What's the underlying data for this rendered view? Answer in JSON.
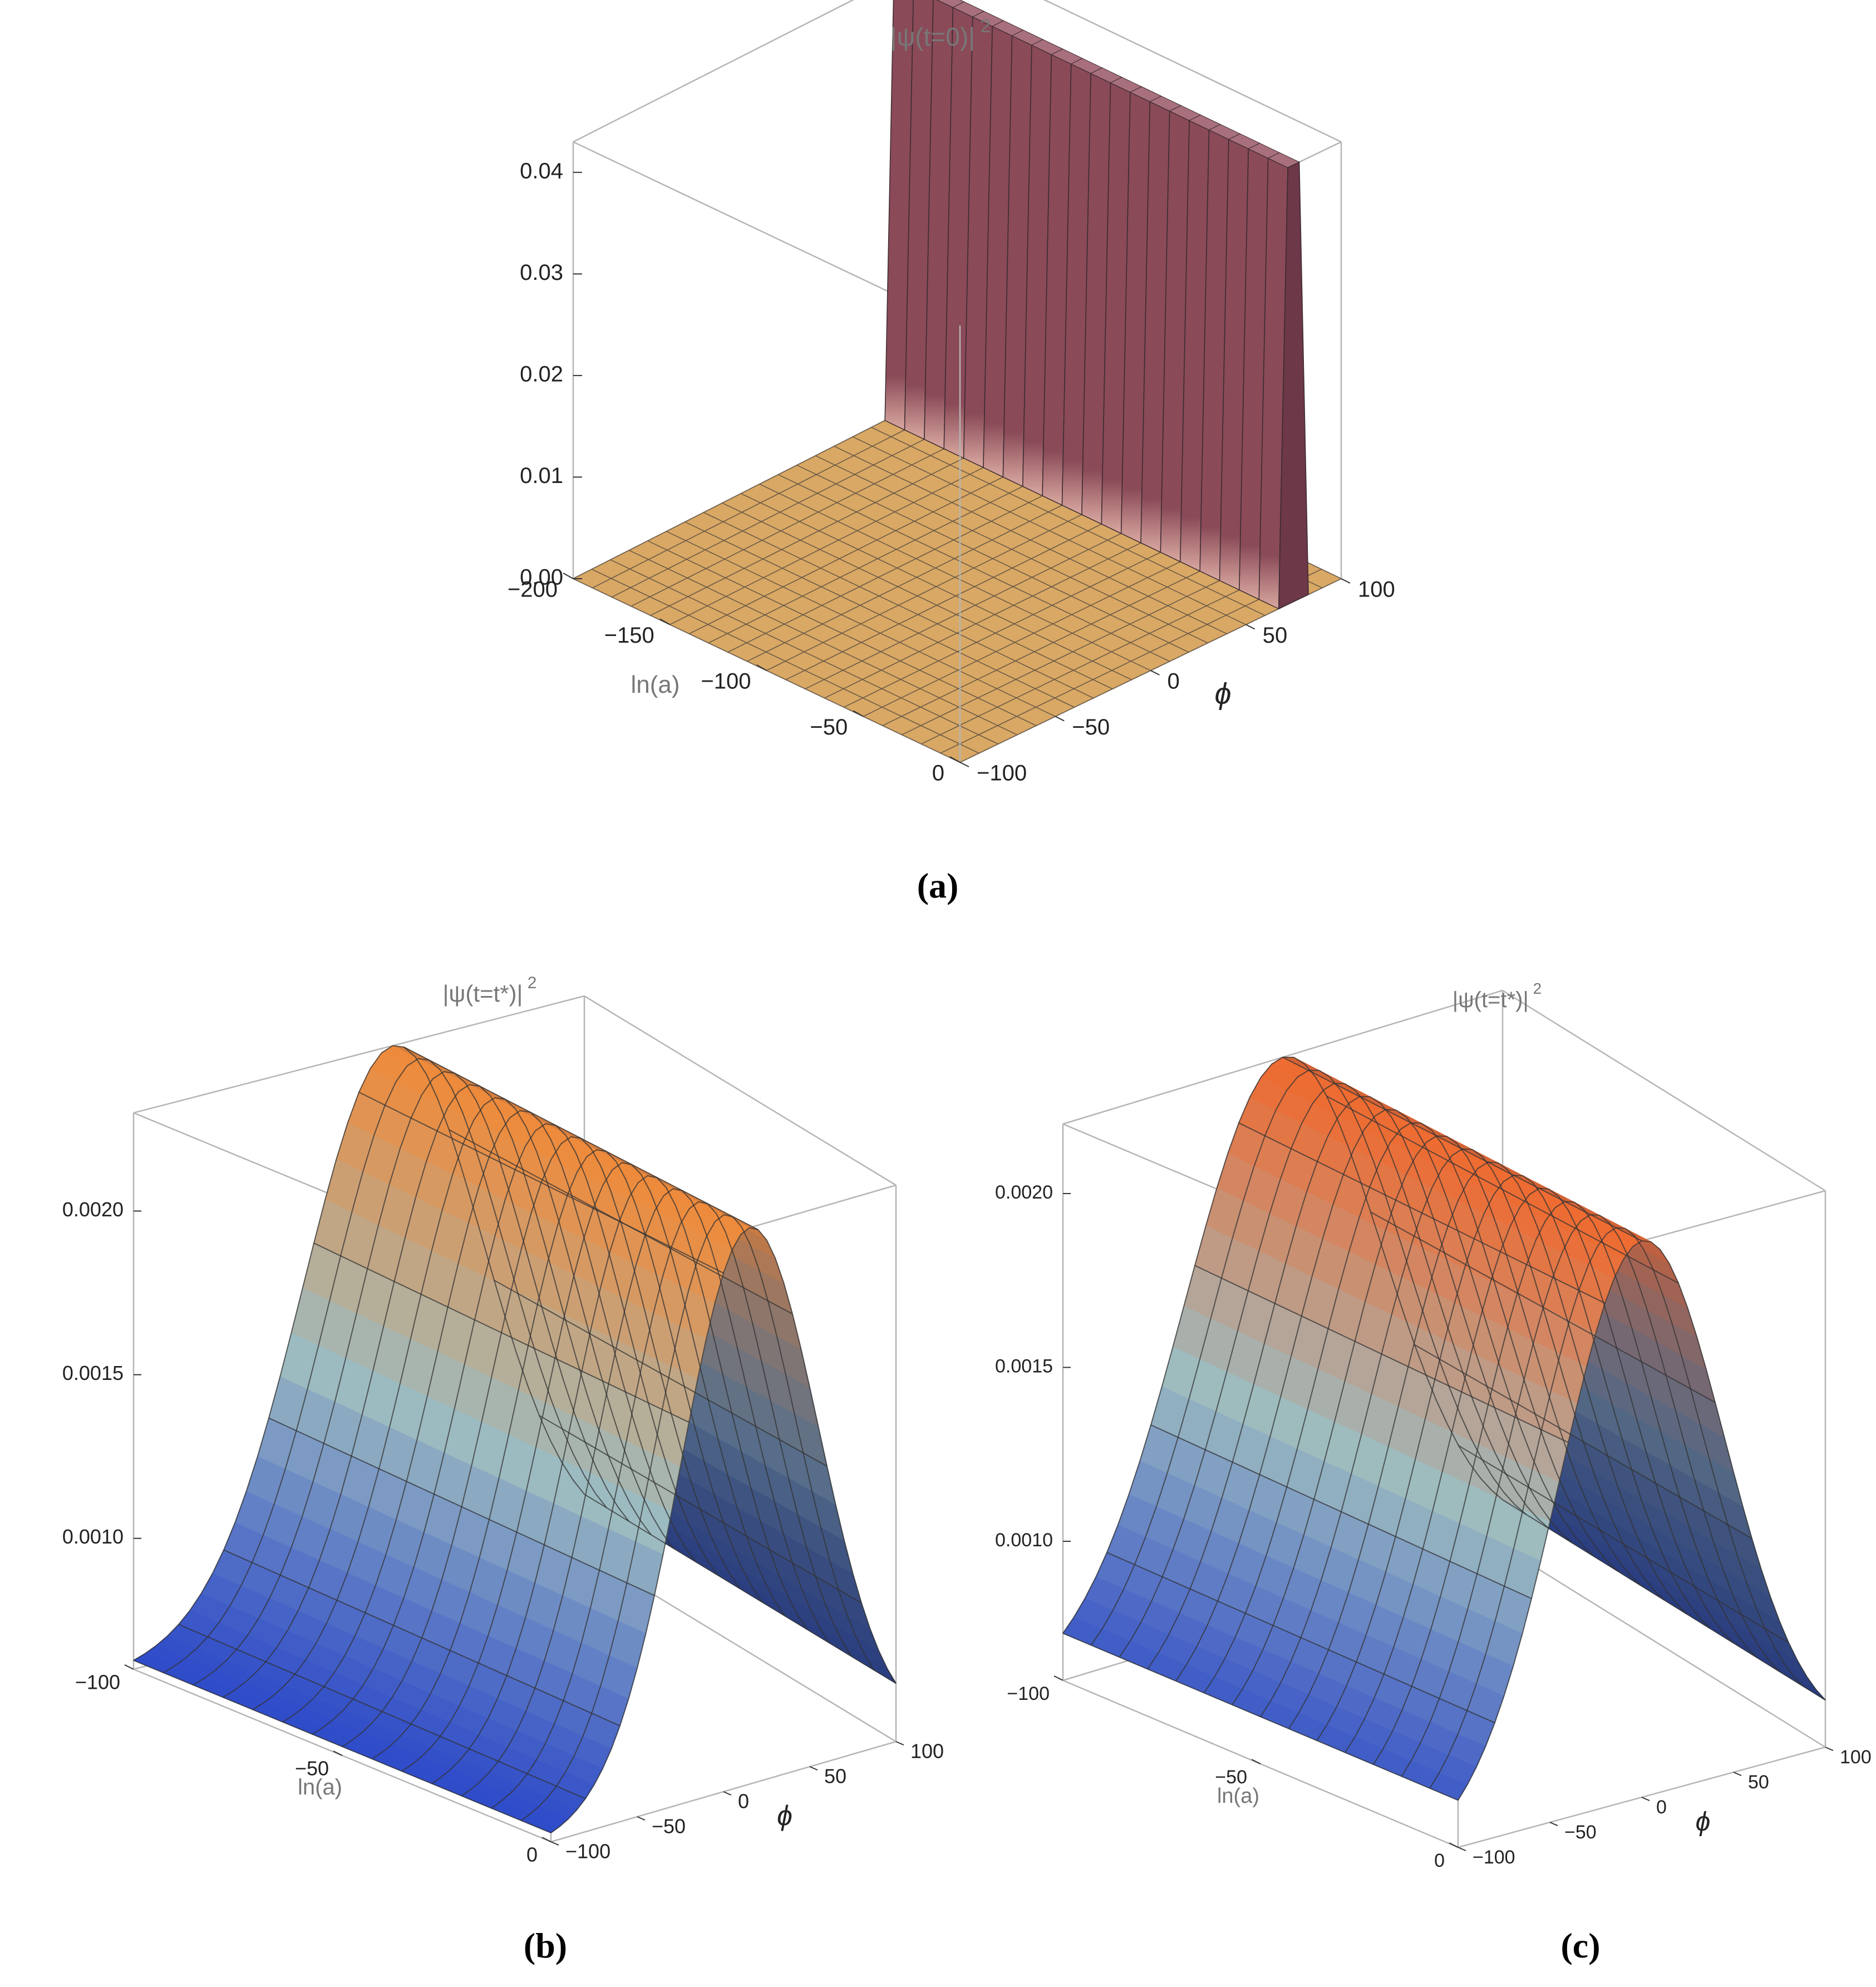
{
  "chart_data": [
    {
      "panel": "a",
      "type": "surface3d",
      "title": "|ψ(t=0)|",
      "title_exponent": "2",
      "caption": "(a)",
      "xlabel": "ln(a)",
      "ylabel": "ϕ",
      "xlim": [
        -200,
        0
      ],
      "ylim": [
        -100,
        100
      ],
      "zlim": [
        0,
        0.043
      ],
      "x_ticks": [
        "-200",
        "-150",
        "-100",
        "-50",
        "0"
      ],
      "y_ticks": [
        "-100",
        "-50",
        "0",
        "50",
        "100"
      ],
      "z_ticks": [
        "0.00",
        "0.01",
        "0.02",
        "0.03",
        "0.04"
      ],
      "description_values": {
        "peak_phi": 75,
        "peak_height": 0.043,
        "peak_width": 3
      },
      "colors": {
        "wall": "#8a4a58",
        "wall_light": "#a8707c",
        "base": "#d9a865",
        "mesh": "#3a3a3a"
      }
    },
    {
      "panel": "b",
      "type": "surface3d",
      "title": "|ψ(t=t*)|",
      "title_exponent": "2",
      "caption": "(b)",
      "xlabel": "ln(a)",
      "ylabel": "ϕ",
      "xlim": [
        -100,
        0
      ],
      "ylim": [
        -100,
        100
      ],
      "zlim": [
        0.0006,
        0.0023
      ],
      "x_ticks": [
        "-100",
        "-50",
        "0"
      ],
      "y_ticks": [
        "-100",
        "-50",
        "0",
        "50",
        "100"
      ],
      "z_ticks": [
        "0.0010",
        "0.0015",
        "0.0020"
      ],
      "profile": {
        "center_phi": 15,
        "peak": 0.0023,
        "floor": 0.0006,
        "sigma": 40
      },
      "colors": {
        "low": "#2b47c9",
        "mid": "#9dbcc0",
        "high": "#ef8a3a",
        "dark": "#1b2a5a",
        "mesh": "#333333"
      }
    },
    {
      "panel": "c",
      "type": "surface3d",
      "title": "|ψ(t=t*)|",
      "title_exponent": "2",
      "caption": "(c)",
      "xlabel": "ln(a)",
      "ylabel": "ϕ",
      "xlim": [
        -100,
        0
      ],
      "ylim": [
        -100,
        100
      ],
      "zlim": [
        0.0006,
        0.0022
      ],
      "x_ticks": [
        "-100",
        "-50",
        "0"
      ],
      "y_ticks": [
        "-100",
        "-50",
        "0",
        "50",
        "100"
      ],
      "z_ticks": [
        "0.0010",
        "0.0015",
        "0.0020"
      ],
      "profile": {
        "center_phi": 0,
        "peak": 0.0022,
        "floor": 0.0006,
        "sigma": 45
      },
      "colors": {
        "low": "#2b47c9",
        "mid": "#9dbcc0",
        "high": "#ef6a30",
        "dark": "#1b2a5a",
        "mesh": "#333333"
      }
    }
  ]
}
